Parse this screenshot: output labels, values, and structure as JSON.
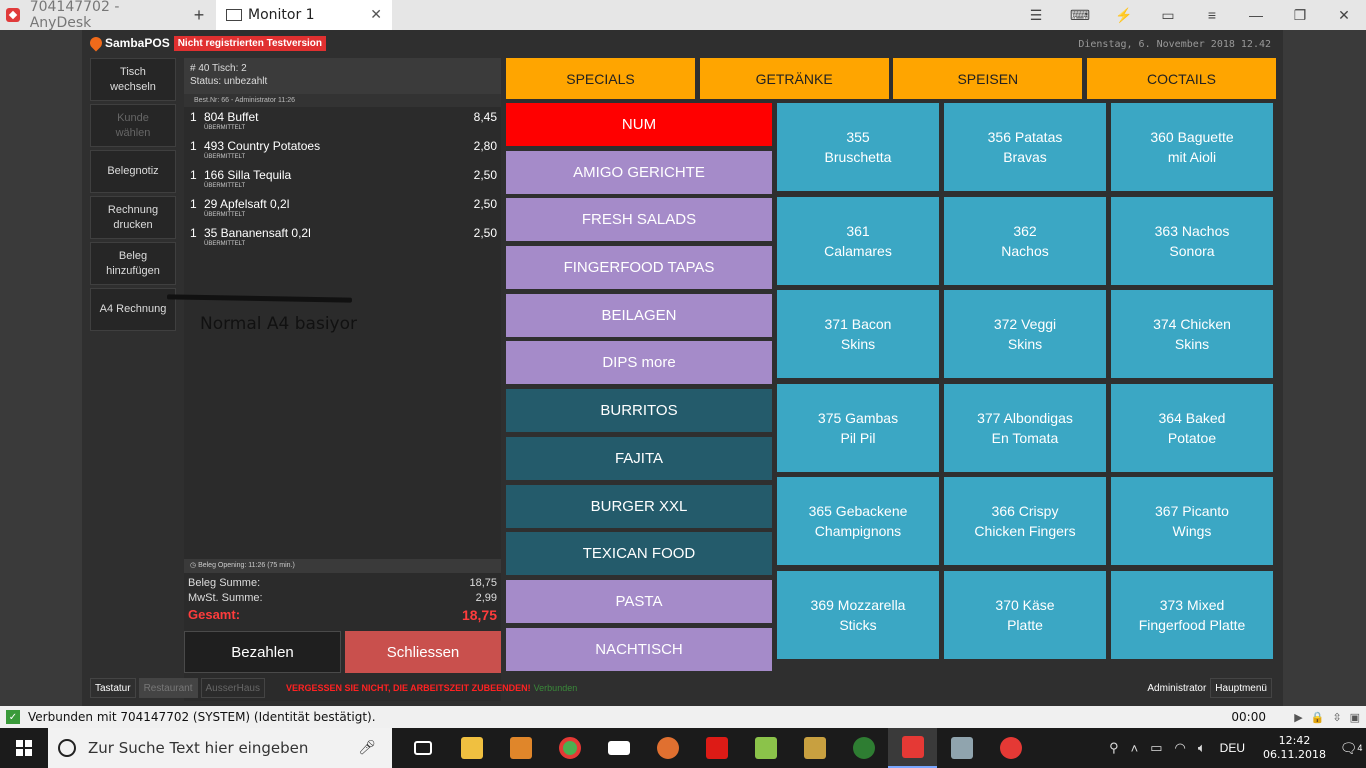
{
  "anydesk": {
    "home_tab": "704147702 - AnyDesk",
    "plus": "+",
    "monitor_tab": "Monitor 1",
    "tab_close": "✕",
    "tools": [
      "☰",
      "⌨",
      "⚡",
      "▭",
      "≡",
      "—",
      "❐",
      "✕"
    ],
    "status_text": "Verbunden mit 704147702 (SYSTEM) (Identität bestätigt).",
    "status_time": "00:00",
    "check": "✓"
  },
  "pos": {
    "logo_text": "SambaPOS",
    "trial_badge": "Nicht registrierten Testversion",
    "date": "Dienstag, 6. November 2018 12.42",
    "left_buttons": [
      {
        "label": "Tisch\nwechseln",
        "enabled": true
      },
      {
        "label": "Kunde\nwählen",
        "enabled": false
      },
      {
        "label": "Belegnotiz",
        "enabled": true
      },
      {
        "label": "Rechnung\ndrucken",
        "enabled": true
      },
      {
        "label": "Beleg\nhinzufügen",
        "enabled": true
      },
      {
        "label": "A4 Rechnung",
        "enabled": true
      }
    ],
    "ticket": {
      "header_line1": "# 40 Tisch: 2",
      "header_line2": "Status: unbezahlt",
      "order_meta": "Best.Nr: 66 - Administrator 11:26",
      "orders": [
        {
          "qty": "1",
          "name": "804 Buffet",
          "price": "8,45",
          "state": "ÜBERMITTELT"
        },
        {
          "qty": "1",
          "name": "493 Country Potatoes",
          "price": "2,80",
          "state": "ÜBERMITTELT"
        },
        {
          "qty": "1",
          "name": "166 Silla Tequila",
          "price": "2,50",
          "state": "ÜBERMITTELT"
        },
        {
          "qty": "1",
          "name": "29 Apfelsaft 0,2l",
          "price": "2,50",
          "state": "ÜBERMITTELT"
        },
        {
          "qty": "1",
          "name": "35 Bananensaft 0,2l",
          "price": "2,50",
          "state": "ÜBERMITTELT"
        }
      ],
      "annotation": "Normal A4 basiyor",
      "opening": "Beleg Opening:   11:26 (75 min.)",
      "sum_label": "Beleg Summe:",
      "sum_value": "18,75",
      "tax_label": "MwSt. Summe:",
      "tax_value": "2,99",
      "total_label": "Gesamt:",
      "total_value": "18,75",
      "pay_button": "Bezahlen",
      "close_button": "Schliessen"
    },
    "top_tabs": [
      "SPECIALS",
      "GETRÄNKE",
      "SPEISEN",
      "COCTAILS"
    ],
    "categories": [
      {
        "label": "NUM",
        "style": "red"
      },
      {
        "label": "AMIGO GERICHTE",
        "style": "purple"
      },
      {
        "label": "FRESH SALADS",
        "style": "purple"
      },
      {
        "label": "FINGERFOOD TAPAS",
        "style": "purple"
      },
      {
        "label": "BEILAGEN",
        "style": "purple"
      },
      {
        "label": "DIPS more",
        "style": "purple"
      },
      {
        "label": "BURRITOS",
        "style": "teal"
      },
      {
        "label": "FAJITA",
        "style": "teal"
      },
      {
        "label": "BURGER XXL",
        "style": "teal"
      },
      {
        "label": "TEXICAN FOOD",
        "style": "teal"
      },
      {
        "label": "PASTA",
        "style": "purple"
      },
      {
        "label": "NACHTISCH",
        "style": "purple"
      }
    ],
    "menu_items": [
      "355\nBruschetta",
      "356 Patatas\nBravas",
      "360 Baguette\nmit Aioli",
      "361\nCalamares",
      "362\nNachos",
      "363 Nachos\nSonora",
      "371 Bacon\nSkins",
      "372 Veggi\nSkins",
      "374 Chicken\nSkins",
      "375 Gambas\nPil Pil",
      "377 Albondigas\nEn Tomata",
      "364 Baked\nPotatoe",
      "365 Gebackene\nChampignons",
      "366 Crispy\nChicken Fingers",
      "367 Picanto\nWings",
      "369 Mozzarella\nSticks",
      "370 Käse\nPlatte",
      "373 Mixed\nFingerfood Platte"
    ],
    "footer": {
      "keyboard": "Tastatur",
      "restaurant": "Restaurant",
      "takeaway": "AusserHaus",
      "warning": "VERGESSEN SIE NICHT, DIE ARBEITSZEIT ZUBEENDEN!",
      "connected": "Verbunden",
      "user": "Administrator",
      "main_menu": "Hauptmenü"
    }
  },
  "taskbar": {
    "search_placeholder": "Zur Suche Text hier eingeben",
    "language": "DEU",
    "time": "12:42",
    "date": "06.11.2018",
    "notification_count": "4"
  }
}
